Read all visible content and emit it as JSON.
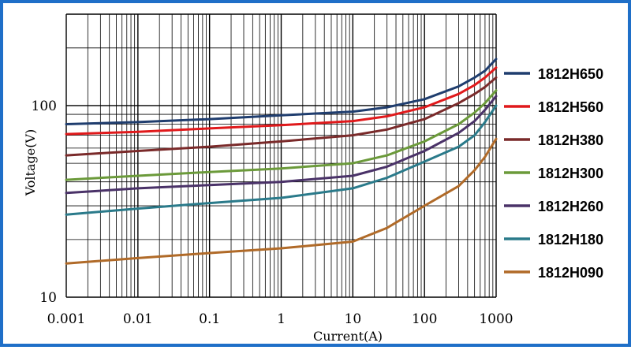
{
  "chart_data": {
    "type": "line",
    "xlabel": "Current(A)",
    "ylabel": "Voltage(V)",
    "x_scale": "log",
    "y_scale": "log",
    "xlim": [
      0.001,
      1000
    ],
    "ylim": [
      10,
      300
    ],
    "grid": true,
    "legend_position": "right",
    "x_tick_labels": [
      "0.001",
      "0.01",
      "0.1",
      "1",
      "10",
      "100",
      "1000"
    ],
    "y_tick_labels": [
      "10",
      "100"
    ],
    "series": [
      {
        "name": "1812H650",
        "color": "#1f3d6e",
        "x": [
          0.001,
          0.01,
          0.1,
          1,
          10,
          30,
          100,
          300,
          500,
          700,
          1000
        ],
        "y": [
          80,
          82,
          85,
          89,
          93,
          98,
          108,
          126,
          140,
          152,
          175
        ]
      },
      {
        "name": "1812H560",
        "color": "#e0191b",
        "x": [
          0.001,
          0.01,
          0.1,
          1,
          10,
          30,
          100,
          300,
          500,
          700,
          1000
        ],
        "y": [
          71,
          73,
          76,
          79,
          83,
          88,
          98,
          115,
          128,
          140,
          158
        ]
      },
      {
        "name": "1812H380",
        "color": "#7a2a2a",
        "x": [
          0.001,
          0.01,
          0.1,
          1,
          10,
          30,
          100,
          300,
          500,
          700,
          1000
        ],
        "y": [
          55,
          58,
          61,
          65,
          70,
          75,
          85,
          103,
          115,
          125,
          140
        ]
      },
      {
        "name": "1812H300",
        "color": "#6b9a3a",
        "x": [
          0.001,
          0.01,
          0.1,
          1,
          10,
          30,
          100,
          300,
          500,
          700,
          1000
        ],
        "y": [
          41,
          43,
          45,
          47,
          50,
          55,
          65,
          80,
          92,
          103,
          120
        ]
      },
      {
        "name": "1812H260",
        "color": "#4a3268",
        "x": [
          0.001,
          0.01,
          0.1,
          1,
          10,
          30,
          100,
          300,
          500,
          700,
          1000
        ],
        "y": [
          35,
          37,
          38.5,
          40,
          43,
          48,
          58,
          72,
          83,
          95,
          112
        ]
      },
      {
        "name": "1812H180",
        "color": "#2a7a8a",
        "x": [
          0.001,
          0.01,
          0.1,
          1,
          10,
          30,
          100,
          300,
          500,
          700,
          1000
        ],
        "y": [
          27,
          29,
          31,
          33,
          37,
          42,
          51,
          61,
          70,
          82,
          100
        ]
      },
      {
        "name": "1812H090",
        "color": "#b06a28",
        "x": [
          0.001,
          0.01,
          0.1,
          1,
          10,
          30,
          100,
          300,
          500,
          700,
          1000
        ],
        "y": [
          15,
          16,
          17,
          18,
          19.5,
          23,
          30,
          38,
          46,
          54,
          67
        ]
      }
    ]
  }
}
